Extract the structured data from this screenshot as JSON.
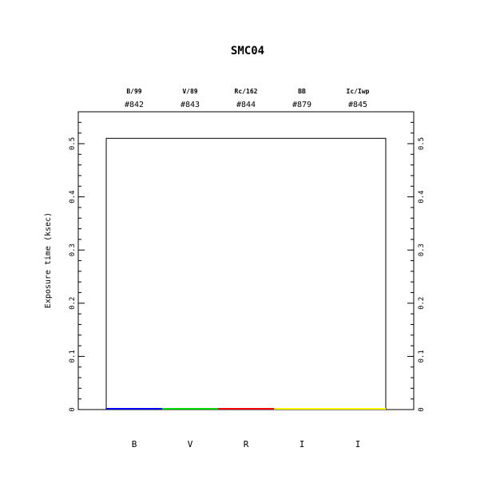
{
  "chart_data": {
    "type": "bar",
    "title": "SMC04",
    "ylabel": "Exposure time (ksec)",
    "ylim": [
      0,
      0.56
    ],
    "yticks": [
      "0",
      "0.1",
      "0.2",
      "0.3",
      "0.4",
      "0.5"
    ],
    "ytick_values": [
      0,
      0.1,
      0.2,
      0.3,
      0.4,
      0.5
    ],
    "grid": false,
    "categories": [
      "B",
      "V",
      "R",
      "I",
      "I"
    ],
    "filter_names": [
      "B/99",
      "V/89",
      "Rc/162",
      "BB",
      "Ic/Iwp"
    ],
    "filter_ids": [
      "#842",
      "#843",
      "#844",
      "#879",
      "#845"
    ],
    "values": [
      0,
      0,
      0,
      0,
      0
    ],
    "colors": [
      "#0000ff",
      "#00dd00",
      "#ff0000",
      "#ffff00",
      "#ffff00"
    ],
    "outline_level": 0.51
  }
}
